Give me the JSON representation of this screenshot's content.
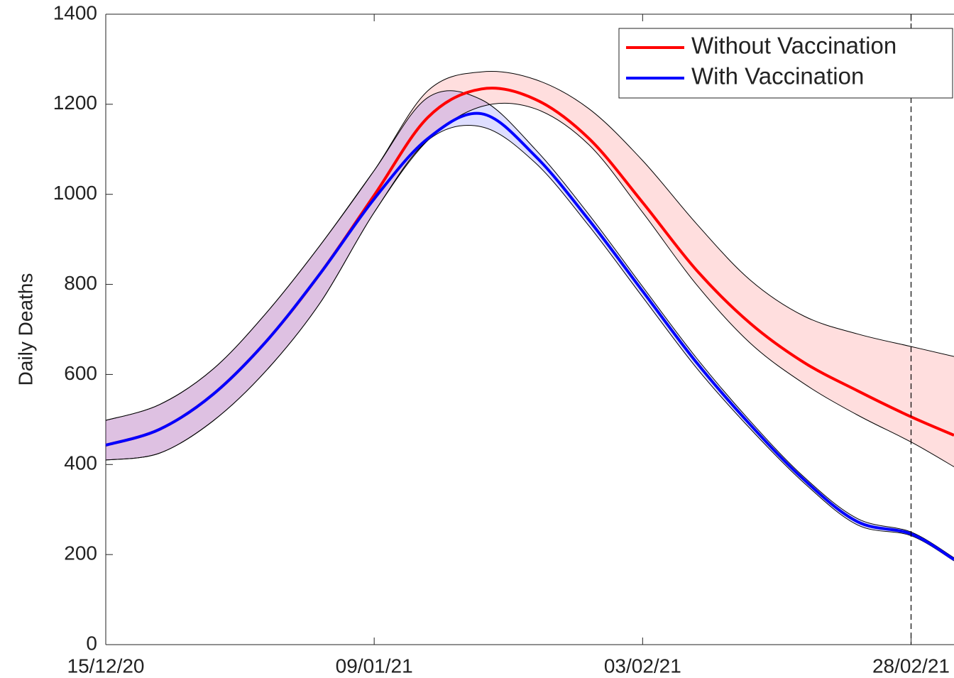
{
  "chart_data": {
    "type": "line",
    "y_label": "Daily Deaths",
    "x": [
      0,
      5,
      10,
      15,
      20,
      25,
      30,
      35,
      40,
      45,
      50,
      55,
      60,
      65,
      70,
      75,
      79
    ],
    "xlim": [
      0,
      79
    ],
    "xticks": [
      {
        "value": 0,
        "label": "15/12/20"
      },
      {
        "value": 25,
        "label": "09/01/21"
      },
      {
        "value": 50,
        "label": "03/02/21"
      },
      {
        "value": 75,
        "label": "28/02/21"
      }
    ],
    "ylim": [
      0,
      1400
    ],
    "yticks": [
      0,
      200,
      400,
      600,
      800,
      1000,
      1200,
      1400
    ],
    "vline": 75,
    "legend": "top-right",
    "series": [
      {
        "name": "Without Vaccination",
        "color": "#ff0000",
        "band_color": "#ff0000",
        "values": [
          443,
          478,
          556,
          675,
          825,
          998,
          1171,
          1234,
          1211,
          1124,
          982,
          832,
          714,
          627,
          564,
          506,
          465
        ],
        "upper": [
          498,
          533,
          612,
          738,
          888,
          1053,
          1230,
          1272,
          1255,
          1190,
          1075,
          935,
          810,
          730,
          690,
          662,
          640
        ],
        "lower": [
          410,
          425,
          497,
          610,
          760,
          960,
          1120,
          1195,
          1190,
          1110,
          960,
          800,
          670,
          580,
          510,
          450,
          395
        ]
      },
      {
        "name": "With Vaccination",
        "color": "#0000ff",
        "band_color": "#0000ff",
        "values": [
          443,
          478,
          556,
          675,
          825,
          990,
          1124,
          1179,
          1085,
          943,
          785,
          627,
          489,
          367,
          273,
          246,
          189
        ],
        "upper": [
          498,
          533,
          612,
          738,
          888,
          1053,
          1215,
          1210,
          1100,
          955,
          795,
          637,
          497,
          373,
          280,
          250,
          193
        ],
        "lower": [
          410,
          425,
          497,
          610,
          760,
          960,
          1120,
          1150,
          1070,
          930,
          772,
          615,
          480,
          360,
          266,
          242,
          186
        ]
      }
    ]
  }
}
